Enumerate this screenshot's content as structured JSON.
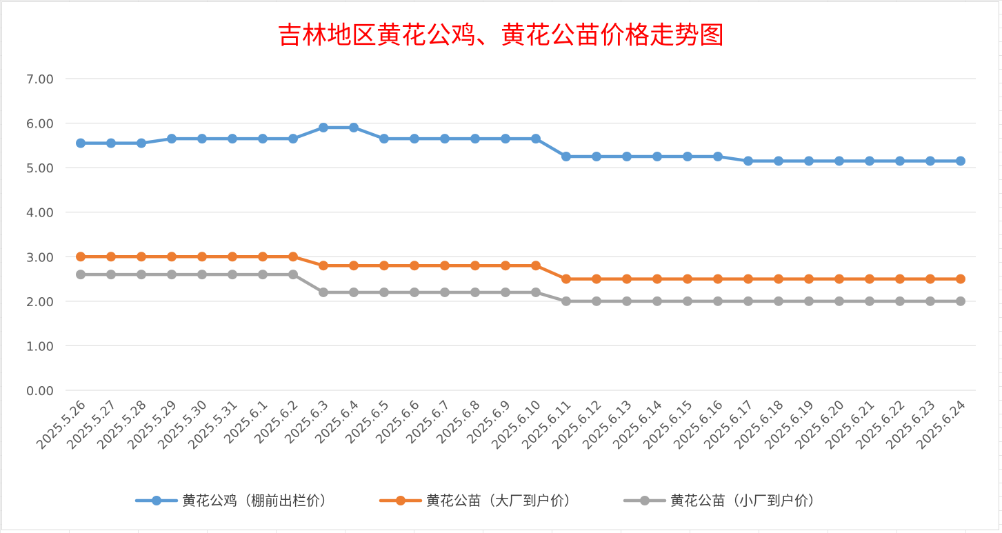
{
  "chart_data": {
    "type": "line",
    "title": "吉林地区黄花公鸡、黄花公苗价格走势图",
    "xlabel": "",
    "ylabel": "",
    "ylim": [
      0,
      7
    ],
    "y_ticks": [
      "0.00",
      "1.00",
      "2.00",
      "3.00",
      "4.00",
      "5.00",
      "6.00",
      "7.00"
    ],
    "grid": true,
    "legend_position": "bottom",
    "categories": [
      "2025.5.26",
      "2025.5.27",
      "2025.5.28",
      "2025.5.29",
      "2025.5.30",
      "2025.5.31",
      "2025.6.1",
      "2025.6.2",
      "2025.6.3",
      "2025.6.4",
      "2025.6.5",
      "2025.6.6",
      "2025.6.7",
      "2025.6.8",
      "2025.6.9",
      "2025.6.10",
      "2025.6.11",
      "2025.6.12",
      "2025.6.13",
      "2025.6.14",
      "2025.6.15",
      "2025.6.16",
      "2025.6.17",
      "2025.6.18",
      "2025.6.19",
      "2025.6.20",
      "2025.6.21",
      "2025.6.22",
      "2025.6.23",
      "2025.6.24"
    ],
    "series": [
      {
        "name": "黄花公鸡（棚前出栏价）",
        "color": "#5b9bd5",
        "values": [
          5.55,
          5.55,
          5.55,
          5.65,
          5.65,
          5.65,
          5.65,
          5.65,
          5.9,
          5.9,
          5.65,
          5.65,
          5.65,
          5.65,
          5.65,
          5.65,
          5.25,
          5.25,
          5.25,
          5.25,
          5.25,
          5.25,
          5.15,
          5.15,
          5.15,
          5.15,
          5.15,
          5.15,
          5.15,
          5.15
        ]
      },
      {
        "name": "黄花公苗（大厂到户价）",
        "color": "#ed7d31",
        "values": [
          3.0,
          3.0,
          3.0,
          3.0,
          3.0,
          3.0,
          3.0,
          3.0,
          2.8,
          2.8,
          2.8,
          2.8,
          2.8,
          2.8,
          2.8,
          2.8,
          2.5,
          2.5,
          2.5,
          2.5,
          2.5,
          2.5,
          2.5,
          2.5,
          2.5,
          2.5,
          2.5,
          2.5,
          2.5,
          2.5
        ]
      },
      {
        "name": "黄花公苗（小厂到户价）",
        "color": "#a5a5a5",
        "values": [
          2.6,
          2.6,
          2.6,
          2.6,
          2.6,
          2.6,
          2.6,
          2.6,
          2.2,
          2.2,
          2.2,
          2.2,
          2.2,
          2.2,
          2.2,
          2.2,
          2.0,
          2.0,
          2.0,
          2.0,
          2.0,
          2.0,
          2.0,
          2.0,
          2.0,
          2.0,
          2.0,
          2.0,
          2.0,
          2.0
        ]
      }
    ]
  }
}
